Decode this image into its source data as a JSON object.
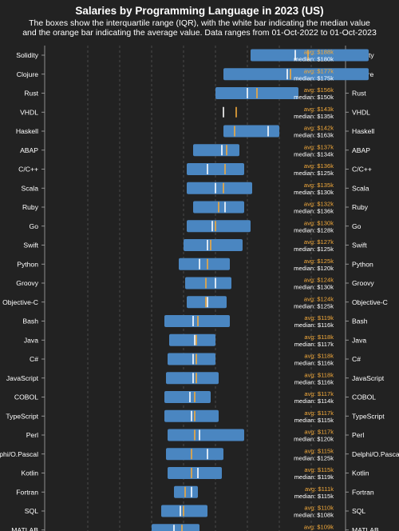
{
  "chart_data": {
    "type": "box-range",
    "title": "Salaries by Programming Language in 2023 (US)",
    "subtitle_lines": [
      "The boxes show the interquartile range (IQR), with the white bar indicating the median value",
      "and the orange bar indicating the average value. Data ranges from 01-Oct-2022 to 01-Oct-2023"
    ],
    "colors": {
      "background": "#222222",
      "box": "#4a86c1",
      "median": "#ffffff",
      "average": "#f2a93b"
    },
    "grid": true,
    "xlim": [
      30,
      210
    ],
    "gridlines": [
      50,
      70,
      90,
      110,
      130,
      150,
      170,
      190
    ],
    "avg_prefix": "avg: ",
    "median_prefix": "median: ",
    "languages": [
      {
        "name": "Solidity",
        "q1": 152,
        "q3": 226,
        "median": 180,
        "avg": 188,
        "avg_text": "$188k",
        "median_text": "$180k"
      },
      {
        "name": "Clojure",
        "q1": 135,
        "q3": 226,
        "median": 175,
        "avg": 177,
        "avg_text": "$177k",
        "median_text": "$175k"
      },
      {
        "name": "Rust",
        "q1": 130,
        "q3": 182,
        "median": 150,
        "avg": 156,
        "avg_text": "$156k",
        "median_text": "$150k"
      },
      {
        "name": "VHDL",
        "q1": 135,
        "q3": 135,
        "median": 135,
        "avg": 143,
        "avg_text": "$143k",
        "median_text": "$135k"
      },
      {
        "name": "Haskell",
        "q1": 135,
        "q3": 170,
        "median": 163,
        "avg": 142,
        "avg_text": "$142k",
        "median_text": "$163k"
      },
      {
        "name": "ABAP",
        "q1": 116,
        "q3": 145,
        "median": 134,
        "avg": 137,
        "avg_text": "$137k",
        "median_text": "$134k"
      },
      {
        "name": "C/C++",
        "q1": 112,
        "q3": 148,
        "median": 125,
        "avg": 136,
        "avg_text": "$136k",
        "median_text": "$125k"
      },
      {
        "name": "Scala",
        "q1": 112,
        "q3": 153,
        "median": 130,
        "avg": 135,
        "avg_text": "$135k",
        "median_text": "$130k"
      },
      {
        "name": "Ruby",
        "q1": 116,
        "q3": 148,
        "median": 136,
        "avg": 132,
        "avg_text": "$132k",
        "median_text": "$136k"
      },
      {
        "name": "Go",
        "q1": 112,
        "q3": 152,
        "median": 128,
        "avg": 130,
        "avg_text": "$130k",
        "median_text": "$128k"
      },
      {
        "name": "Swift",
        "q1": 110,
        "q3": 147,
        "median": 125,
        "avg": 127,
        "avg_text": "$127k",
        "median_text": "$125k"
      },
      {
        "name": "Python",
        "q1": 107,
        "q3": 139,
        "median": 120,
        "avg": 125,
        "avg_text": "$125k",
        "median_text": "$120k"
      },
      {
        "name": "Groovy",
        "q1": 111,
        "q3": 140,
        "median": 130,
        "avg": 124,
        "avg_text": "$124k",
        "median_text": "$130k"
      },
      {
        "name": "Objective-C",
        "q1": 112,
        "q3": 137,
        "median": 125,
        "avg": 124,
        "avg_text": "$124k",
        "median_text": "$125k"
      },
      {
        "name": "Bash",
        "q1": 98,
        "q3": 139,
        "median": 116,
        "avg": 119,
        "avg_text": "$119k",
        "median_text": "$116k"
      },
      {
        "name": "Java",
        "q1": 101,
        "q3": 130,
        "median": 117,
        "avg": 118,
        "avg_text": "$118k",
        "median_text": "$117k"
      },
      {
        "name": "C#",
        "q1": 100,
        "q3": 130,
        "median": 116,
        "avg": 118,
        "avg_text": "$118k",
        "median_text": "$116k"
      },
      {
        "name": "JavaScript",
        "q1": 99,
        "q3": 132,
        "median": 116,
        "avg": 118,
        "avg_text": "$118k",
        "median_text": "$116k"
      },
      {
        "name": "COBOL",
        "q1": 98,
        "q3": 127,
        "median": 114,
        "avg": 117,
        "avg_text": "$117k",
        "median_text": "$114k"
      },
      {
        "name": "TypeScript",
        "q1": 98,
        "q3": 132,
        "median": 115,
        "avg": 117,
        "avg_text": "$117k",
        "median_text": "$115k"
      },
      {
        "name": "Perl",
        "q1": 100,
        "q3": 148,
        "median": 120,
        "avg": 117,
        "avg_text": "$117k",
        "median_text": "$120k"
      },
      {
        "name": "Delphi/O.Pascal",
        "q1": 99,
        "q3": 135,
        "median": 125,
        "avg": 115,
        "avg_text": "$115k",
        "median_text": "$125k"
      },
      {
        "name": "Kotlin",
        "q1": 100,
        "q3": 134,
        "median": 119,
        "avg": 115,
        "avg_text": "$115k",
        "median_text": "$119k"
      },
      {
        "name": "Fortran",
        "q1": 104,
        "q3": 119,
        "median": 115,
        "avg": 111,
        "avg_text": "$111k",
        "median_text": "$115k"
      },
      {
        "name": "SQL",
        "q1": 96,
        "q3": 125,
        "median": 108,
        "avg": 110,
        "avg_text": "$110k",
        "median_text": "$108k"
      },
      {
        "name": "MATLAB",
        "q1": 90,
        "q3": 120,
        "median": 104,
        "avg": 109,
        "avg_text": "$109k",
        "median_text": ""
      }
    ]
  }
}
